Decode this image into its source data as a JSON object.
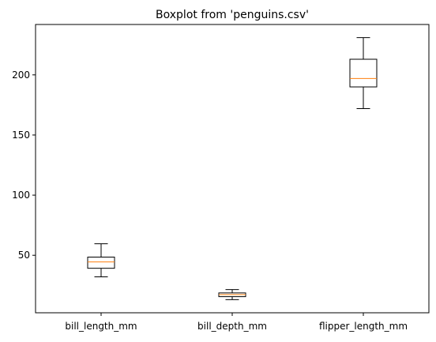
{
  "chart_data": {
    "type": "boxplot",
    "title": "Boxplot from 'penguins.csv'",
    "xlabel": "",
    "ylabel": "",
    "categories": [
      "bill_length_mm",
      "bill_depth_mm",
      "flipper_length_mm"
    ],
    "boxes": [
      {
        "label": "bill_length_mm",
        "whisker_low": 32.1,
        "q1": 39.2,
        "median": 44.45,
        "q3": 48.5,
        "whisker_high": 59.6
      },
      {
        "label": "bill_depth_mm",
        "whisker_low": 13.1,
        "q1": 15.6,
        "median": 17.3,
        "q3": 18.7,
        "whisker_high": 21.5
      },
      {
        "label": "flipper_length_mm",
        "whisker_low": 172,
        "q1": 190,
        "median": 197,
        "q3": 213,
        "whisker_high": 231
      }
    ],
    "yticks": [
      50,
      100,
      150,
      200
    ],
    "ylim": [
      2.2,
      241.9
    ],
    "grid": false,
    "legend": "none",
    "colors": {
      "box": "#000000",
      "median": "#ff7f0e",
      "axes": "#000000"
    }
  }
}
